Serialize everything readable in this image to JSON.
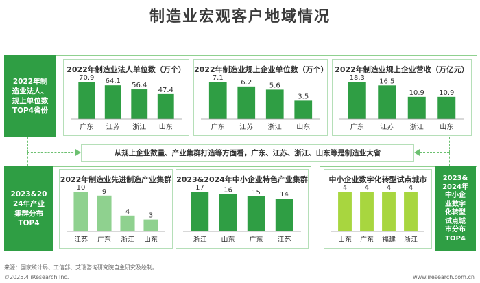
{
  "title": "制造业宏观客户地域情况",
  "sidebar_top": "2022年制\n造业法人、\n规上单位数\nTOP4省份",
  "sidebar_bottom_left": "2023&20\n24年产业\n集群分布\nTOP4",
  "sidebar_bottom_right": "2023&\n2024年\n中小企\n业数字\n化转型\n试点城\n市分布\nTOP4",
  "summary": "从规上企业数量、产业集群打造等方面看，广东、江苏、浙江、山东等是制造业大省",
  "source": "来源：国家统计局、工信部、艾瑞咨询研究院自主研究及绘制。",
  "copyright": "©2025.4 iResearch Inc.",
  "website": "www.iresearch.com.cn",
  "chart_data": [
    {
      "type": "bar",
      "title": "2022年制造业法人单位数（万个）",
      "categories": [
        "广东",
        "江苏",
        "浙江",
        "山东"
      ],
      "values": [
        70.9,
        64.1,
        56.4,
        47.4
      ],
      "value_labels": [
        "70.9",
        "64.1",
        "56.4",
        "47.4"
      ],
      "color": "#2f9e44"
    },
    {
      "type": "bar",
      "title": "2022年制造业规上企业单位数（万个）",
      "categories": [
        "广东",
        "江苏",
        "浙江",
        "山东"
      ],
      "values": [
        7.1,
        6.2,
        5.6,
        3.5
      ],
      "value_labels": [
        "7.1",
        "6.2",
        "5.6",
        "3.5"
      ],
      "color": "#2f9e44"
    },
    {
      "type": "bar",
      "title": "2022年制造业规上企业营收（万亿元）",
      "categories": [
        "广东",
        "江苏",
        "浙江",
        "山东"
      ],
      "values": [
        18.3,
        16.5,
        10.9,
        10.9
      ],
      "value_labels": [
        "18.3",
        "16.5",
        "10.9",
        "10.9"
      ],
      "color": "#2f9e44"
    },
    {
      "type": "bar",
      "title": "2022年制造业先进制造产业集群",
      "categories": [
        "江苏",
        "广东",
        "浙江",
        "山东"
      ],
      "values": [
        10,
        9,
        4,
        3
      ],
      "value_labels": [
        "10",
        "9",
        "4",
        "3"
      ],
      "color": "#8fd18f"
    },
    {
      "type": "bar",
      "title": "2023&2024年中小企业特色产业集群",
      "categories": [
        "浙江",
        "山东",
        "广东",
        "江苏"
      ],
      "values": [
        17,
        16,
        15,
        14
      ],
      "value_labels": [
        "17",
        "16",
        "15",
        "14"
      ],
      "color": "#2f9e44"
    },
    {
      "type": "bar",
      "title": "中小企业数字化转型试点城市",
      "categories": [
        "山东",
        "广东",
        "福建",
        "浙江"
      ],
      "values": [
        4,
        4,
        4,
        4
      ],
      "value_labels": [
        "4",
        "4",
        "4",
        "4"
      ],
      "color": "#a8d63f"
    }
  ]
}
